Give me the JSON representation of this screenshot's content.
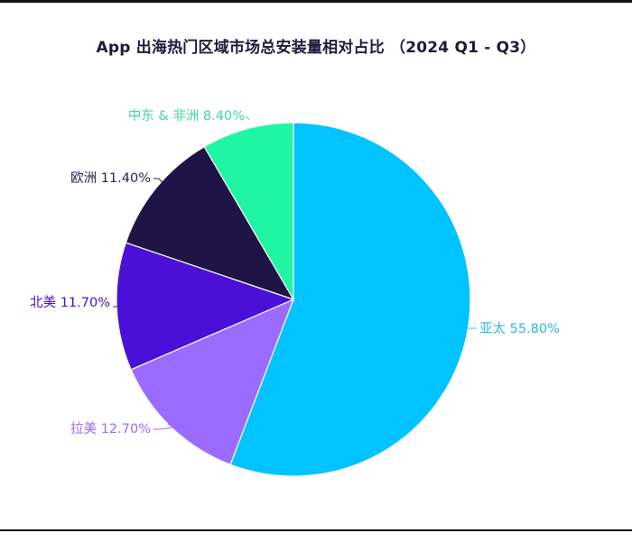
{
  "title": "App 出海热门区域市场总安装量相对占比 （2024 Q1 - Q3）",
  "chart_data": {
    "type": "pie",
    "title": "App 出海热门区域市场总安装量相对占比 （2024 Q1 - Q3）",
    "unit": "%",
    "start_angle_deg": 0,
    "direction": "clockwise",
    "slices": [
      {
        "name": "亚太",
        "value": 55.8,
        "label": "亚太 55.80%",
        "color": "#00c3ff",
        "label_color": "#2bb8e6"
      },
      {
        "name": "拉美",
        "value": 12.7,
        "label": "拉美 12.70%",
        "color": "#9b6bff",
        "label_color": "#9b6bff"
      },
      {
        "name": "北美",
        "value": 11.7,
        "label": "北美 11.70%",
        "color": "#4a10d8",
        "label_color": "#4a10d8"
      },
      {
        "name": "欧洲",
        "value": 11.4,
        "label": "欧洲 11.40%",
        "color": "#1e1445",
        "label_color": "#2a2248"
      },
      {
        "name": "中东 & 非洲",
        "value": 8.4,
        "label": "中东 & 非洲 8.40%",
        "color": "#1ff5a3",
        "label_color": "#3ed9a0"
      }
    ]
  }
}
